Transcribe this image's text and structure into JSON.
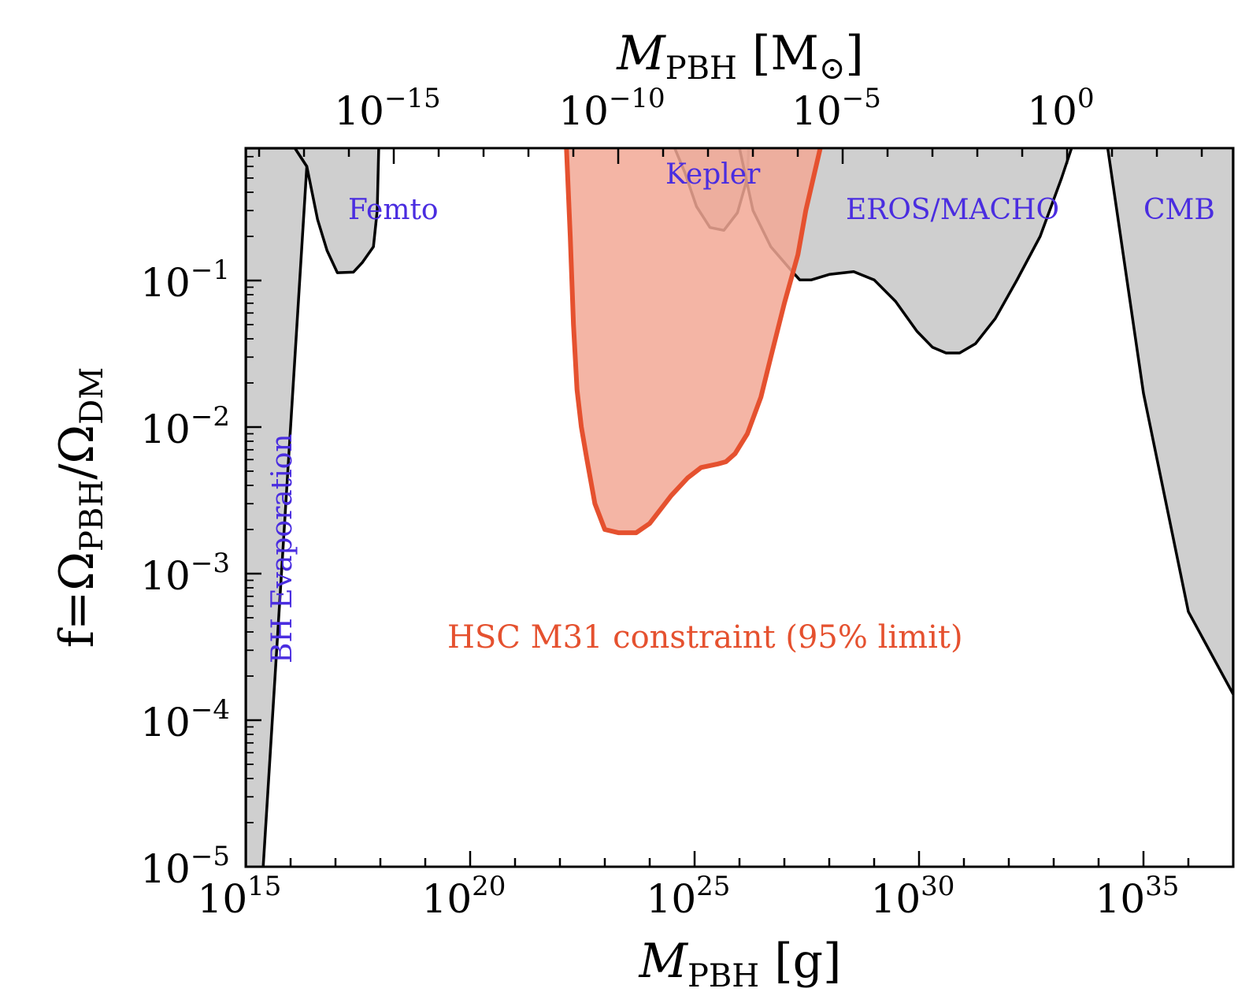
{
  "colors": {
    "excluded_fill": "#bfbfbf",
    "hsc_fill": "#f2a895",
    "hsc_line": "#e5512f",
    "annotation": "#4a2de0"
  },
  "chart_data": {
    "type": "area",
    "x_scale": "log",
    "y_scale": "log",
    "xlim": [
      1000000000000000.0,
      1e+37
    ],
    "ylim": [
      1e-05,
      0.8
    ],
    "grid": false,
    "legend": "none",
    "xlabel": {
      "main": "M",
      "sub": "PBH",
      "unit": " [g]"
    },
    "ylabel": {
      "main": "f=Ω",
      "sub1": "PBH",
      "mid": "/Ω",
      "sub2": "DM"
    },
    "x2label": {
      "main": "M",
      "sub": "PBH",
      "unit": " [M",
      "sun": "⊙",
      "close": "]"
    },
    "x_ticks": [
      {
        "base": "10",
        "exp": "15"
      },
      {
        "base": "10",
        "exp": "20"
      },
      {
        "base": "10",
        "exp": "25"
      },
      {
        "base": "10",
        "exp": "30"
      },
      {
        "base": "10",
        "exp": "35"
      }
    ],
    "y_ticks": [
      {
        "base": "10",
        "exp": "−5"
      },
      {
        "base": "10",
        "exp": "−4"
      },
      {
        "base": "10",
        "exp": "−3"
      },
      {
        "base": "10",
        "exp": "−2"
      },
      {
        "base": "10",
        "exp": "−1"
      }
    ],
    "x2_ticks": [
      {
        "base": "10",
        "exp": "−15"
      },
      {
        "base": "10",
        "exp": "−10"
      },
      {
        "base": "10",
        "exp": "−5"
      },
      {
        "base": "10",
        "exp": "0"
      }
    ],
    "x2_values_msun": [
      1e-15,
      1e-10,
      1e-05,
      1
    ],
    "solar_mass_g": 1.989e+33,
    "annotations": {
      "bh_evaporation": "BH Evaporation",
      "femto": "Femto",
      "kepler": "Kepler",
      "eros_macho": "EROS/MACHO",
      "cmb": "CMB",
      "hsc": "HSC M31 constraint (95% limit)"
    },
    "series": [
      {
        "name": "BH Evaporation",
        "style": "excluded",
        "x": [
          1000000000000000.0,
          1000000000000000.0,
          1.25e+16,
          2.3e+16,
          2450000000000000.0
        ],
        "y": [
          1e-05,
          0.8,
          0.8,
          0.6,
          1e-05
        ]
      },
      {
        "name": "Femto",
        "style": "excluded",
        "x": [
          1.25e+16,
          2.3e+16,
          4e+16,
          6.5e+16,
          1.1e+17,
          2.5e+17,
          4e+17,
          7e+17,
          8.5e+17,
          9.2e+17
        ],
        "y": [
          0.8,
          0.6,
          0.26,
          0.16,
          0.113,
          0.114,
          0.133,
          0.17,
          0.3,
          0.8
        ]
      },
      {
        "name": "Kepler",
        "style": "excluded",
        "x": [
          3.6e+24,
          6e+24,
          1.1e+25,
          2.2e+25,
          4.5e+25,
          9e+25,
          1.5e+26,
          1.6e+26
        ],
        "y": [
          0.8,
          0.55,
          0.32,
          0.23,
          0.22,
          0.29,
          0.5,
          0.8
        ]
      },
      {
        "name": "EROS/MACHO",
        "style": "excluded",
        "x": [
          1e+26,
          2e+26,
          5e+26,
          1.5e+27,
          2.2e+27,
          4e+27,
          1e+28,
          3.5e+28,
          1e+29,
          3e+29,
          9e+29,
          2e+30,
          4e+30,
          8e+30,
          1.8e+31,
          5e+31,
          1.5e+32,
          5e+32,
          1.5e+33,
          2.5e+33
        ],
        "y": [
          0.8,
          0.3,
          0.17,
          0.115,
          0.101,
          0.101,
          0.11,
          0.115,
          0.101,
          0.072,
          0.045,
          0.035,
          0.032,
          0.032,
          0.037,
          0.055,
          0.1,
          0.2,
          0.5,
          0.8
        ]
      },
      {
        "name": "CMB",
        "style": "excluded",
        "x": [
          1.6e+34,
          1e+35,
          1e+36,
          1e+37,
          1e+37
        ],
        "y": [
          0.8,
          0.017,
          0.00055,
          0.00015,
          0.8
        ]
      },
      {
        "name": "HSC M31 constraint (95% limit)",
        "style": "hsc",
        "x": [
          1.4e+22,
          1.7e+22,
          2e+22,
          2.4e+22,
          3e+22,
          4e+22,
          6e+22,
          1e+23,
          2e+23,
          5e+23,
          1e+24,
          3e+24,
          7e+24,
          1.4e+25,
          3.3e+25,
          5e+25,
          8e+25,
          1.5e+26,
          3e+26,
          5e+26,
          1e+27,
          2e+27,
          3e+27,
          6.3e+27
        ],
        "y": [
          0.8,
          0.2,
          0.05,
          0.018,
          0.01,
          0.006,
          0.003,
          0.002,
          0.0019,
          0.0019,
          0.0022,
          0.0034,
          0.0045,
          0.0053,
          0.0056,
          0.0058,
          0.0066,
          0.009,
          0.016,
          0.03,
          0.07,
          0.15,
          0.3,
          0.8
        ]
      }
    ]
  }
}
